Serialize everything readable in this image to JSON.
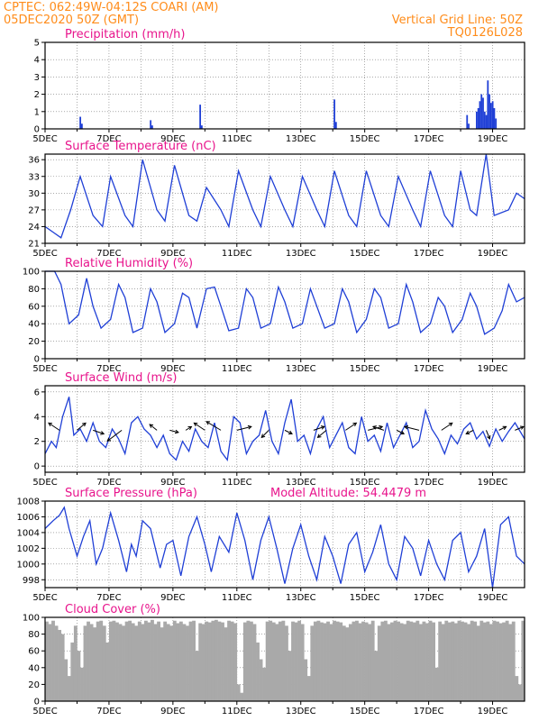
{
  "header": {
    "line1": "CPTEC:   062:49W-04:12S   COARI (AM)",
    "line2": "05DEC2020  50Z  (GMT)",
    "right1": "Vertical Grid Line: 50Z",
    "right2": "TQ0126L028"
  },
  "colors": {
    "header": "#ff8c1a",
    "panel_title": "#e8148c",
    "line": "#1f3fd6",
    "bar": "#1f3fd6",
    "cloud": "#a9a9a9",
    "arrow": "#000000"
  },
  "x_axis": {
    "start": "05DEC2020",
    "end": "20DEC2020",
    "tick_labels": [
      "5DEC",
      "7DEC",
      "9DEC",
      "11DEC",
      "13DEC",
      "15DEC",
      "17DEC",
      "19DEC"
    ],
    "tick_days": [
      0,
      2,
      4,
      6,
      8,
      10,
      12,
      14
    ]
  },
  "chart_data": [
    {
      "type": "bar",
      "title": "Precipitation (mm/h)",
      "ylim": [
        0,
        5
      ],
      "yticks": [
        0,
        1,
        2,
        3,
        4,
        5
      ],
      "x_days": [
        1.1,
        1.15,
        3.3,
        3.35,
        4.85,
        4.9,
        9.05,
        9.1,
        13.2,
        13.25,
        13.5,
        13.55,
        13.6,
        13.65,
        13.7,
        13.75,
        13.8,
        13.85,
        13.9,
        13.95,
        14.0,
        14.05,
        14.1
      ],
      "values": [
        0.7,
        0.3,
        0.5,
        0.2,
        1.4,
        0.2,
        1.7,
        0.4,
        0.8,
        0.3,
        1.0,
        1.2,
        1.6,
        2.0,
        1.8,
        1.0,
        0.8,
        2.8,
        2.0,
        1.5,
        1.6,
        1.2,
        0.6
      ]
    },
    {
      "type": "line",
      "title": "Surface Temperature (nC)",
      "ylim": [
        21,
        37
      ],
      "yticks": [
        21,
        24,
        27,
        30,
        33,
        36
      ],
      "x_days": [
        0,
        0.25,
        0.5,
        0.8,
        1.1,
        1.5,
        1.8,
        2.05,
        2.5,
        2.75,
        3.05,
        3.5,
        3.75,
        4.05,
        4.5,
        4.75,
        5.05,
        5.5,
        5.75,
        6.05,
        6.5,
        6.75,
        7.05,
        7.5,
        7.75,
        8.05,
        8.5,
        8.75,
        9.05,
        9.5,
        9.75,
        10.05,
        10.5,
        10.75,
        11.05,
        11.5,
        11.75,
        12.05,
        12.5,
        12.75,
        13.0,
        13.3,
        13.5,
        13.8,
        14.05,
        14.5,
        14.75,
        15.0
      ],
      "values": [
        24,
        23,
        22,
        27,
        33,
        26,
        24,
        33,
        26,
        24,
        36,
        27,
        25,
        35,
        26,
        25,
        31,
        27,
        24,
        34,
        27,
        24,
        33,
        27,
        24,
        33,
        27,
        24,
        34,
        26,
        24,
        34,
        26,
        24,
        33,
        27,
        24,
        34,
        26,
        24,
        34,
        27,
        26,
        37,
        26,
        27,
        30,
        29
      ]
    },
    {
      "type": "line",
      "title": "Relative Humidity (%)",
      "ylim": [
        0,
        100
      ],
      "yticks": [
        0,
        20,
        40,
        60,
        80,
        100
      ],
      "x_days": [
        0,
        0.3,
        0.5,
        0.75,
        1.05,
        1.3,
        1.5,
        1.75,
        2.05,
        2.3,
        2.5,
        2.75,
        3.05,
        3.3,
        3.5,
        3.75,
        4.05,
        4.3,
        4.5,
        4.75,
        5.05,
        5.3,
        5.5,
        5.75,
        6.05,
        6.3,
        6.5,
        6.75,
        7.05,
        7.3,
        7.5,
        7.75,
        8.05,
        8.3,
        8.5,
        8.75,
        9.05,
        9.3,
        9.5,
        9.75,
        10.05,
        10.3,
        10.5,
        10.75,
        11.05,
        11.3,
        11.5,
        11.75,
        12.05,
        12.3,
        12.5,
        12.75,
        13.05,
        13.3,
        13.5,
        13.75,
        14.05,
        14.3,
        14.5,
        14.75,
        15.0
      ],
      "values": [
        100,
        100,
        85,
        40,
        50,
        92,
        60,
        35,
        45,
        85,
        70,
        30,
        35,
        80,
        65,
        30,
        40,
        75,
        70,
        35,
        80,
        82,
        60,
        32,
        35,
        80,
        70,
        35,
        40,
        82,
        65,
        35,
        40,
        80,
        60,
        35,
        40,
        80,
        65,
        30,
        45,
        80,
        70,
        35,
        40,
        85,
        65,
        30,
        40,
        70,
        60,
        30,
        45,
        75,
        60,
        28,
        35,
        55,
        85,
        65,
        70
      ]
    },
    {
      "type": "line",
      "title": "Surface Wind (m/s)",
      "ylim": [
        -0.5,
        6.5
      ],
      "yticks": [
        0,
        2,
        4,
        6
      ],
      "x_days": [
        0,
        0.2,
        0.35,
        0.55,
        0.75,
        0.9,
        1.1,
        1.3,
        1.5,
        1.7,
        1.9,
        2.1,
        2.3,
        2.5,
        2.7,
        2.9,
        3.1,
        3.3,
        3.5,
        3.7,
        3.9,
        4.1,
        4.3,
        4.5,
        4.7,
        4.9,
        5.1,
        5.3,
        5.5,
        5.7,
        5.9,
        6.1,
        6.3,
        6.5,
        6.7,
        6.9,
        7.1,
        7.3,
        7.5,
        7.7,
        7.9,
        8.1,
        8.3,
        8.5,
        8.7,
        8.9,
        9.1,
        9.3,
        9.5,
        9.7,
        9.9,
        10.1,
        10.3,
        10.5,
        10.7,
        10.9,
        11.1,
        11.3,
        11.5,
        11.7,
        11.9,
        12.1,
        12.3,
        12.5,
        12.7,
        12.9,
        13.1,
        13.3,
        13.5,
        13.7,
        13.9,
        14.1,
        14.3,
        14.5,
        14.7,
        15.0
      ],
      "values": [
        1.0,
        2.0,
        1.5,
        4.0,
        5.6,
        2.5,
        3.0,
        2.0,
        3.5,
        2.0,
        1.5,
        3.0,
        2.2,
        1.0,
        3.5,
        4.0,
        3.0,
        2.5,
        1.5,
        2.5,
        1.0,
        0.5,
        2.0,
        1.2,
        3.0,
        2.0,
        1.5,
        3.5,
        1.2,
        0.5,
        4.0,
        3.5,
        1.0,
        2.0,
        2.5,
        4.5,
        2.0,
        1.0,
        3.5,
        5.4,
        2.0,
        2.5,
        1.0,
        3.0,
        4.0,
        1.5,
        2.5,
        3.5,
        1.5,
        1.0,
        4.0,
        2.0,
        2.5,
        1.2,
        3.5,
        1.5,
        2.5,
        3.5,
        1.5,
        2.0,
        4.5,
        3.0,
        2.2,
        1.0,
        2.5,
        1.8,
        3.0,
        3.5,
        2.2,
        2.8,
        1.6,
        3.0,
        2.0,
        2.8,
        3.5,
        2.2
      ]
    },
    {
      "type": "line",
      "title": "Surface Pressure (hPa)",
      "ylim": [
        997,
        1008
      ],
      "yticks": [
        998,
        1000,
        1002,
        1004,
        1006,
        1008
      ],
      "x_days": [
        0,
        0.25,
        0.45,
        0.6,
        0.75,
        1.0,
        1.2,
        1.4,
        1.6,
        1.8,
        2.05,
        2.3,
        2.55,
        2.7,
        2.85,
        3.05,
        3.3,
        3.6,
        3.8,
        4.0,
        4.25,
        4.5,
        4.75,
        5.0,
        5.2,
        5.45,
        5.75,
        6.0,
        6.25,
        6.5,
        6.75,
        7.0,
        7.25,
        7.5,
        7.75,
        8.0,
        8.25,
        8.5,
        8.75,
        9.0,
        9.25,
        9.5,
        9.75,
        10.0,
        10.25,
        10.5,
        10.75,
        11.0,
        11.25,
        11.5,
        11.75,
        12.0,
        12.25,
        12.5,
        12.75,
        13.0,
        13.25,
        13.5,
        13.75,
        14.0,
        14.25,
        14.5,
        14.75,
        15.0
      ],
      "values": [
        1004.5,
        1005.5,
        1006.2,
        1007.2,
        1004.5,
        1001.0,
        1003.5,
        1005.5,
        1000.0,
        1002.0,
        1006.5,
        1003.0,
        999.0,
        1002.5,
        1001.0,
        1005.5,
        1004.5,
        999.5,
        1002.5,
        1003.0,
        998.5,
        1003.5,
        1006.0,
        1002.5,
        999.0,
        1003.5,
        1001.5,
        1006.5,
        1003.0,
        998.0,
        1003.0,
        1006.0,
        1002.0,
        997.5,
        1002.0,
        1005.0,
        1001.0,
        998.0,
        1003.5,
        1001.0,
        997.5,
        1002.5,
        1004.0,
        999.0,
        1001.5,
        1005.0,
        1000.0,
        998.0,
        1003.5,
        1002.0,
        998.5,
        1003.0,
        1000.0,
        998.0,
        1003.0,
        1004.0,
        999.0,
        1001.0,
        1004.5,
        997.0,
        1005.0,
        1006.0,
        1001.0,
        1000.0
      ]
    },
    {
      "type": "bar",
      "title": "Cloud Cover (%)",
      "ylim": [
        0,
        100
      ],
      "yticks": [
        0,
        20,
        40,
        60,
        80,
        100
      ],
      "x_start_day": 0,
      "x_step_day": 0.1,
      "values": [
        95,
        92,
        96,
        90,
        85,
        80,
        50,
        30,
        70,
        90,
        60,
        40,
        90,
        95,
        92,
        88,
        95,
        96,
        90,
        70,
        95,
        96,
        94,
        92,
        90,
        95,
        96,
        93,
        90,
        95,
        92,
        96,
        94,
        97,
        92,
        95,
        88,
        95,
        92,
        90,
        96,
        93,
        95,
        92,
        90,
        95,
        96,
        60,
        93,
        92,
        95,
        94,
        96,
        97,
        95,
        94,
        88,
        96,
        95,
        93,
        20,
        10,
        94,
        96,
        95,
        92,
        70,
        50,
        40,
        95,
        96,
        94,
        92,
        95,
        96,
        90,
        60,
        95,
        94,
        96,
        92,
        50,
        30,
        90,
        95,
        96,
        94,
        93,
        95,
        92,
        96,
        95,
        94,
        90,
        88,
        92,
        95,
        96,
        93,
        95,
        94,
        92,
        96,
        60,
        90,
        95,
        96,
        92,
        94,
        96,
        95,
        93,
        92,
        96,
        95,
        94,
        96,
        92,
        95,
        93,
        96,
        94,
        40,
        95,
        92,
        96,
        94,
        95,
        93,
        96,
        95,
        94,
        92,
        96,
        95,
        90,
        96,
        94,
        95,
        92,
        96,
        95,
        93,
        94,
        96,
        92,
        95,
        30,
        20,
        96
      ]
    }
  ],
  "annotations": {
    "model_altitude": "Model Altitude: 54.4479 m"
  },
  "wind_arrows": {
    "x_days": [
      0.45,
      1.0,
      1.5,
      2.4,
      3.5,
      3.9,
      4.4,
      5.0,
      5.5,
      6.0,
      7.0,
      7.5,
      8.4,
      8.8,
      9.4,
      10.1,
      10.6,
      11.0,
      11.7,
      12.4,
      13.4,
      13.8,
      14.2,
      14.7
    ],
    "u": [
      -1.5,
      1.2,
      1.5,
      -2.0,
      -1.0,
      1.2,
      0.8,
      -1.5,
      -2.0,
      2.0,
      -1.0,
      1.0,
      1.5,
      -1.2,
      1.5,
      2.0,
      -1.5,
      1.0,
      -2.0,
      1.5,
      -1.0,
      0.5,
      1.0,
      1.2
    ],
    "v": [
      1.0,
      1.0,
      -0.5,
      -1.5,
      0.8,
      -0.3,
      0.5,
      1.0,
      1.2,
      0.5,
      -1.0,
      -0.5,
      0.5,
      -1.0,
      1.0,
      0.5,
      0.5,
      -0.5,
      0.5,
      1.0,
      -0.5,
      -1.2,
      0.5,
      0.5
    ]
  }
}
